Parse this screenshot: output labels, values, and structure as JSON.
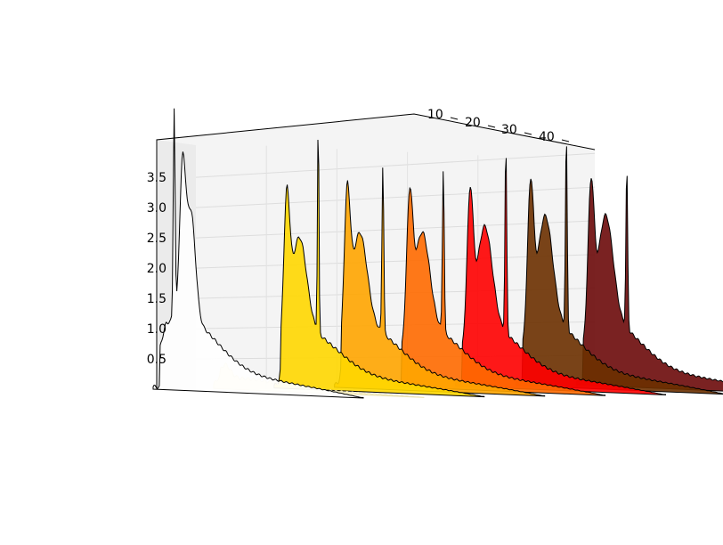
{
  "chart_data": {
    "type": "area",
    "projection": "3d",
    "title": "",
    "xlabel": "",
    "ylabel": "",
    "zlabel": "",
    "depth_ticks": [
      "10",
      "20",
      "30",
      "40"
    ],
    "z_ticks": [
      "0.5",
      "1.0",
      "1.5",
      "2.0",
      "2.5",
      "3.0",
      "3.5"
    ],
    "zlim": [
      0,
      3.9
    ],
    "depth_lim": [
      0,
      50
    ],
    "grid": true,
    "series": [
      {
        "depth": 0,
        "color": "#ffffff",
        "baseline": 0.04,
        "peaks": [
          [
            0.1,
            3.55,
            0.006
          ],
          [
            0.14,
            2.5,
            0.02
          ],
          [
            0.18,
            1.9,
            0.03
          ]
        ],
        "tail": 0.35
      },
      {
        "depth": 7,
        "color": "#fff0a0",
        "baseline": 0.02,
        "peaks": [
          [
            0.05,
            0.25,
            0.04
          ]
        ],
        "tail": 0.05
      },
      {
        "depth": 14,
        "color": "#ffd700",
        "baseline": 0.04,
        "peaks": [
          [
            0.06,
            2.1,
            0.02
          ],
          [
            0.21,
            3.85,
            0.005
          ],
          [
            0.12,
            1.6,
            0.05
          ]
        ],
        "tail": 0.28
      },
      {
        "depth": 21,
        "color": "#ffa500",
        "baseline": 0.04,
        "peaks": [
          [
            0.06,
            2.1,
            0.02
          ],
          [
            0.23,
            3.1,
            0.006
          ],
          [
            0.12,
            1.6,
            0.05
          ]
        ],
        "tail": 0.3
      },
      {
        "depth": 28,
        "color": "#ff6a00",
        "baseline": 0.04,
        "peaks": [
          [
            0.07,
            2.0,
            0.02
          ],
          [
            0.23,
            3.0,
            0.006
          ],
          [
            0.13,
            1.6,
            0.05
          ]
        ],
        "tail": 0.3
      },
      {
        "depth": 35,
        "color": "#ff0000",
        "baseline": 0.04,
        "peaks": [
          [
            0.07,
            2.15,
            0.02
          ],
          [
            0.24,
            3.45,
            0.006
          ],
          [
            0.14,
            1.7,
            0.05
          ]
        ],
        "tail": 0.3
      },
      {
        "depth": 42,
        "color": "#6b3000",
        "baseline": 0.04,
        "peaks": [
          [
            0.07,
            2.2,
            0.02
          ],
          [
            0.24,
            3.6,
            0.006
          ],
          [
            0.14,
            1.8,
            0.05
          ]
        ],
        "tail": 0.32
      },
      {
        "depth": 49,
        "color": "#6b0a0a",
        "baseline": 0.04,
        "peaks": [
          [
            0.07,
            2.2,
            0.02
          ],
          [
            0.24,
            3.0,
            0.006
          ],
          [
            0.14,
            1.8,
            0.05
          ]
        ],
        "tail": 0.32
      }
    ]
  }
}
